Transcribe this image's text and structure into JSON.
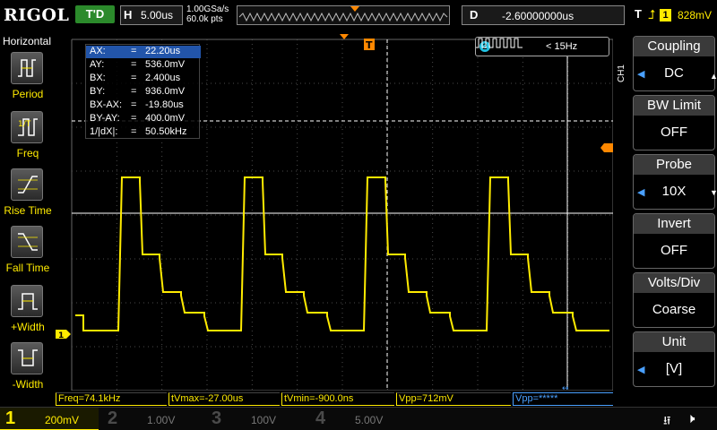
{
  "topbar": {
    "logo": "RIGOL",
    "run_state": "T'D",
    "horizontal": {
      "label": "H",
      "timebase": "5.00us"
    },
    "sampling": {
      "rate": "1.00GSa/s",
      "points": "60.0k pts"
    },
    "delay": {
      "label": "D",
      "value": "-2.60000000us"
    },
    "trigger": {
      "label": "T",
      "edge": "rising-edge-icon",
      "source": "1",
      "level": "828mV"
    }
  },
  "left_panel": {
    "title": "Horizontal",
    "items": [
      {
        "label": "Period",
        "icon": "period-icon"
      },
      {
        "label": "Freq",
        "icon": "frequency-icon"
      },
      {
        "label": "Rise Time",
        "icon": "rise-time-icon"
      },
      {
        "label": "Fall Time",
        "icon": "fall-time-icon"
      },
      {
        "label": "+Width",
        "icon": "positive-width-icon"
      },
      {
        "label": "-Width",
        "icon": "negative-width-icon"
      }
    ]
  },
  "cursor_readout": [
    {
      "key": "AX:",
      "eq": "=",
      "value": "22.20us"
    },
    {
      "key": "AY:",
      "eq": "=",
      "value": "536.0mV"
    },
    {
      "key": "BX:",
      "eq": "=",
      "value": "2.400us"
    },
    {
      "key": "BY:",
      "eq": "=",
      "value": "936.0mV"
    },
    {
      "key": "BX-AX:",
      "eq": "=",
      "value": "-19.80us"
    },
    {
      "key": "BY-AY:",
      "eq": "=",
      "value": "400.0mV"
    },
    {
      "key": "1/|dX|:",
      "eq": "=",
      "value": "50.50kHz"
    }
  ],
  "freq_counter": {
    "channel": "2",
    "value": "< 15Hz"
  },
  "measurements": [
    {
      "text": "Freq=74.1kHz"
    },
    {
      "text": "tVmax=-27.00us"
    },
    {
      "text": "tVmin=-900.0ns"
    },
    {
      "text": "Vpp=712mV"
    },
    {
      "text": "Vpp=*****"
    }
  ],
  "right_menu": {
    "channel_tag": "CH1",
    "items": [
      {
        "title": "Coupling",
        "value": "DC"
      },
      {
        "title": "BW Limit",
        "value": "OFF"
      },
      {
        "title": "Probe",
        "value": "10X"
      },
      {
        "title": "Invert",
        "value": "OFF"
      },
      {
        "title": "Volts/Div",
        "value": "Coarse"
      },
      {
        "title": "Unit",
        "value": "[V]"
      }
    ]
  },
  "channels": [
    {
      "num": "1",
      "scale": "200mV",
      "color": "#ffeb00"
    },
    {
      "num": "2",
      "scale": "1.00V",
      "color": "#20c0e0"
    },
    {
      "num": "3",
      "scale": "100V",
      "color": "#ff3ec8"
    },
    {
      "num": "4",
      "scale": "5.00V",
      "color": "#3a78ff"
    }
  ],
  "markers": {
    "trigger_position": "T",
    "ch1_ground": "1"
  },
  "colors": {
    "ch1": "#ffeb00",
    "grid": "#555555",
    "accent": "#ff8800"
  }
}
